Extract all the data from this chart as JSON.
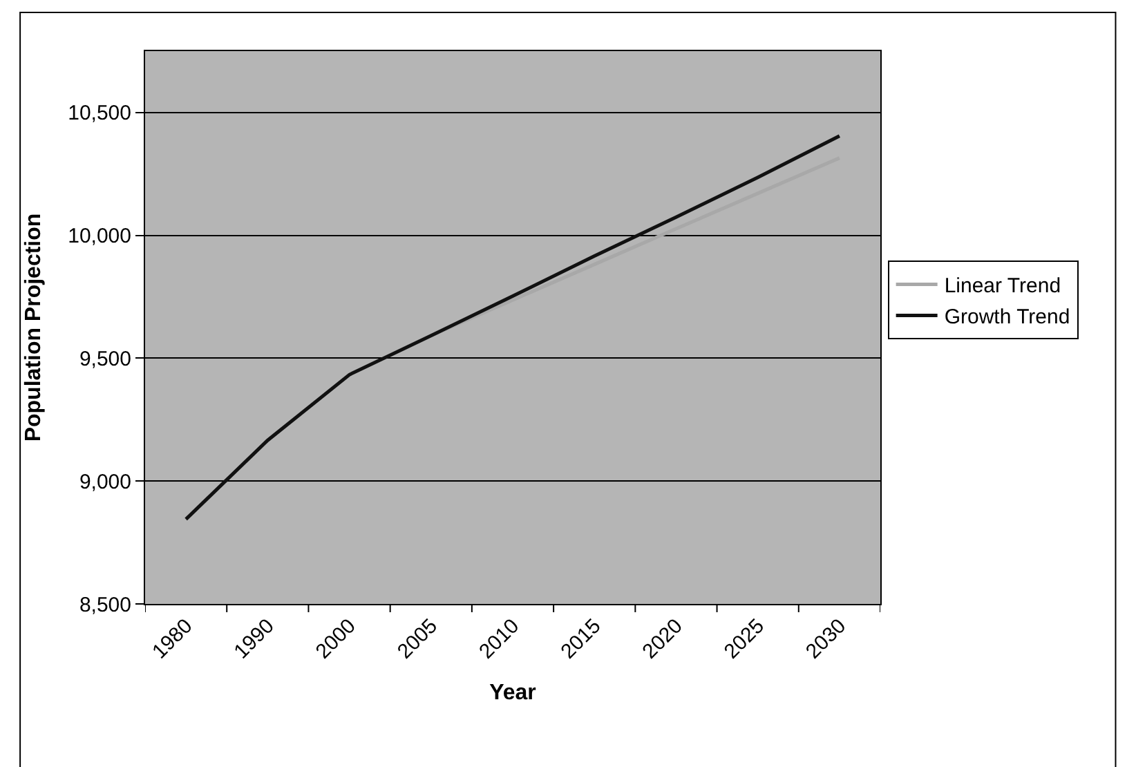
{
  "chart_data": {
    "type": "line",
    "xlabel": "Year",
    "ylabel": "Population Projection",
    "categories": [
      "1980",
      "1990",
      "2000",
      "2005",
      "2010",
      "2015",
      "2020",
      "2025",
      "2030"
    ],
    "series": [
      {
        "name": "Linear Trend",
        "color": "#a8a8a8",
        "values": [
          null,
          null,
          null,
          9592,
          9737,
          9882,
          10027,
          10171,
          10315
        ]
      },
      {
        "name": "Growth Trend",
        "color": "#111111",
        "values": [
          8845,
          9166,
          9433,
          9592,
          9753,
          9916,
          10074,
          10236,
          10405
        ]
      }
    ],
    "ylim": [
      8500,
      10750
    ],
    "yticks": [
      {
        "value": 8500,
        "label": "8,500"
      },
      {
        "value": 9000,
        "label": "9,000"
      },
      {
        "value": 9500,
        "label": "9,500"
      },
      {
        "value": 10000,
        "label": "10,000"
      },
      {
        "value": 10500,
        "label": "10,500"
      }
    ],
    "grid": "y",
    "legend": "right",
    "marker": "none",
    "line_style": "solid"
  }
}
